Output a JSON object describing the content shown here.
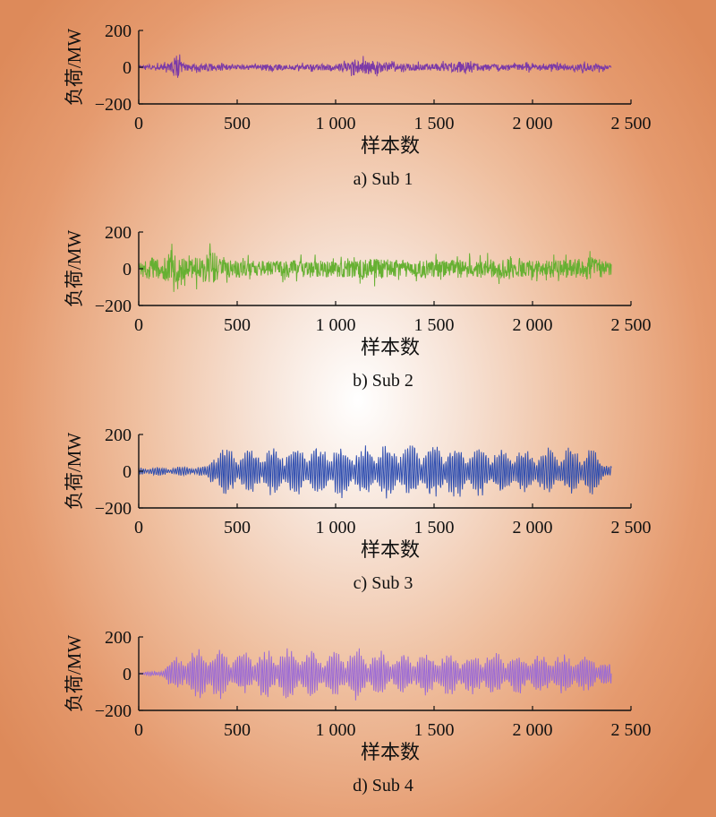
{
  "colors": {
    "axis": "#111111",
    "background_center": "#ffffff",
    "background_edge": "#dd8a5a"
  },
  "chart_data": [
    {
      "type": "line",
      "caption": "a) Sub 1",
      "xlabel": "样本数",
      "ylabel": "负荷/MW",
      "xlim": [
        0,
        2500
      ],
      "ylim": [
        -200,
        200
      ],
      "x_ticks": [
        0,
        500,
        1000,
        1500,
        2000,
        2500
      ],
      "x_tick_labels": [
        "0",
        "500",
        "1 000",
        "1 500",
        "2 000",
        "2 500"
      ],
      "y_ticks": [
        200,
        0,
        -200
      ],
      "y_tick_labels": [
        "200",
        "0",
        "−200"
      ],
      "color": "#7b3aa8",
      "series_x_range": [
        0,
        2400
      ],
      "envelope": [
        {
          "x": 0,
          "amp": 15
        },
        {
          "x": 100,
          "amp": 25
        },
        {
          "x": 160,
          "amp": 45
        },
        {
          "x": 195,
          "amp": 140
        },
        {
          "x": 210,
          "amp": 60
        },
        {
          "x": 260,
          "amp": 30
        },
        {
          "x": 380,
          "amp": 40
        },
        {
          "x": 500,
          "amp": 25
        },
        {
          "x": 700,
          "amp": 30
        },
        {
          "x": 900,
          "amp": 25
        },
        {
          "x": 1000,
          "amp": 35
        },
        {
          "x": 1200,
          "amp": 75
        },
        {
          "x": 1300,
          "amp": 35
        },
        {
          "x": 1500,
          "amp": 30
        },
        {
          "x": 1630,
          "amp": 55
        },
        {
          "x": 1800,
          "amp": 25
        },
        {
          "x": 2000,
          "amp": 30
        },
        {
          "x": 2200,
          "amp": 30
        },
        {
          "x": 2300,
          "amp": 40
        },
        {
          "x": 2400,
          "amp": 15
        }
      ]
    },
    {
      "type": "line",
      "caption": "b) Sub 2",
      "xlabel": "样本数",
      "ylabel": "负荷/MW",
      "xlim": [
        0,
        2500
      ],
      "ylim": [
        -200,
        200
      ],
      "x_ticks": [
        0,
        500,
        1000,
        1500,
        2000,
        2500
      ],
      "x_tick_labels": [
        "0",
        "500",
        "1 000",
        "1 500",
        "2 000",
        "2 500"
      ],
      "y_ticks": [
        200,
        0,
        -200
      ],
      "y_tick_labels": [
        "200",
        "0",
        "−200"
      ],
      "color": "#66b032",
      "series_x_range": [
        0,
        2400
      ],
      "envelope": [
        {
          "x": 0,
          "amp": 70
        },
        {
          "x": 80,
          "amp": 120
        },
        {
          "x": 160,
          "amp": 150
        },
        {
          "x": 250,
          "amp": 90
        },
        {
          "x": 380,
          "amp": 175
        },
        {
          "x": 420,
          "amp": 90
        },
        {
          "x": 600,
          "amp": 80
        },
        {
          "x": 800,
          "amp": 90
        },
        {
          "x": 1000,
          "amp": 80
        },
        {
          "x": 1200,
          "amp": 100
        },
        {
          "x": 1400,
          "amp": 80
        },
        {
          "x": 1600,
          "amp": 90
        },
        {
          "x": 1800,
          "amp": 95
        },
        {
          "x": 2000,
          "amp": 80
        },
        {
          "x": 2200,
          "amp": 90
        },
        {
          "x": 2300,
          "amp": 120
        },
        {
          "x": 2400,
          "amp": 60
        }
      ]
    },
    {
      "type": "line",
      "caption": "c) Sub 3",
      "xlabel": "样本数",
      "ylabel": "负荷/MW",
      "xlim": [
        0,
        2500
      ],
      "ylim": [
        -200,
        200
      ],
      "x_ticks": [
        0,
        500,
        1000,
        1500,
        2000,
        2500
      ],
      "x_tick_labels": [
        "0",
        "500",
        "1 000",
        "1 500",
        "2 000",
        "2 500"
      ],
      "y_ticks": [
        200,
        0,
        -200
      ],
      "y_tick_labels": [
        "200",
        "0",
        "−200"
      ],
      "color": "#2f4eb0",
      "series_x_range": [
        0,
        2400
      ],
      "envelope": [
        {
          "x": 0,
          "amp": 25
        },
        {
          "x": 150,
          "amp": 25
        },
        {
          "x": 250,
          "amp": 30
        },
        {
          "x": 350,
          "amp": 30
        },
        {
          "x": 380,
          "amp": 150
        },
        {
          "x": 500,
          "amp": 130
        },
        {
          "x": 700,
          "amp": 140
        },
        {
          "x": 900,
          "amp": 150
        },
        {
          "x": 1100,
          "amp": 150
        },
        {
          "x": 1300,
          "amp": 160
        },
        {
          "x": 1500,
          "amp": 175
        },
        {
          "x": 1700,
          "amp": 150
        },
        {
          "x": 1900,
          "amp": 140
        },
        {
          "x": 2100,
          "amp": 130
        },
        {
          "x": 2300,
          "amp": 140
        },
        {
          "x": 2400,
          "amp": 40
        }
      ]
    },
    {
      "type": "line",
      "caption": "d) Sub 4",
      "xlabel": "样本数",
      "ylabel": "负荷/MW",
      "xlim": [
        0,
        2500
      ],
      "ylim": [
        -200,
        200
      ],
      "x_ticks": [
        0,
        500,
        1000,
        1500,
        2000,
        2500
      ],
      "x_tick_labels": [
        "0",
        "500",
        "1 000",
        "1 500",
        "2 000",
        "2 500"
      ],
      "y_ticks": [
        200,
        0,
        -200
      ],
      "y_tick_labels": [
        "200",
        "0",
        "−200"
      ],
      "color": "#9b6bd6",
      "series_x_range": [
        0,
        2400
      ],
      "envelope": [
        {
          "x": 0,
          "amp": 10
        },
        {
          "x": 100,
          "amp": 15
        },
        {
          "x": 150,
          "amp": 80
        },
        {
          "x": 330,
          "amp": 170
        },
        {
          "x": 500,
          "amp": 120
        },
        {
          "x": 800,
          "amp": 160
        },
        {
          "x": 1000,
          "amp": 130
        },
        {
          "x": 1100,
          "amp": 150
        },
        {
          "x": 1300,
          "amp": 120
        },
        {
          "x": 1500,
          "amp": 130
        },
        {
          "x": 1700,
          "amp": 130
        },
        {
          "x": 1900,
          "amp": 120
        },
        {
          "x": 2100,
          "amp": 120
        },
        {
          "x": 2300,
          "amp": 110
        },
        {
          "x": 2400,
          "amp": 60
        }
      ]
    }
  ]
}
